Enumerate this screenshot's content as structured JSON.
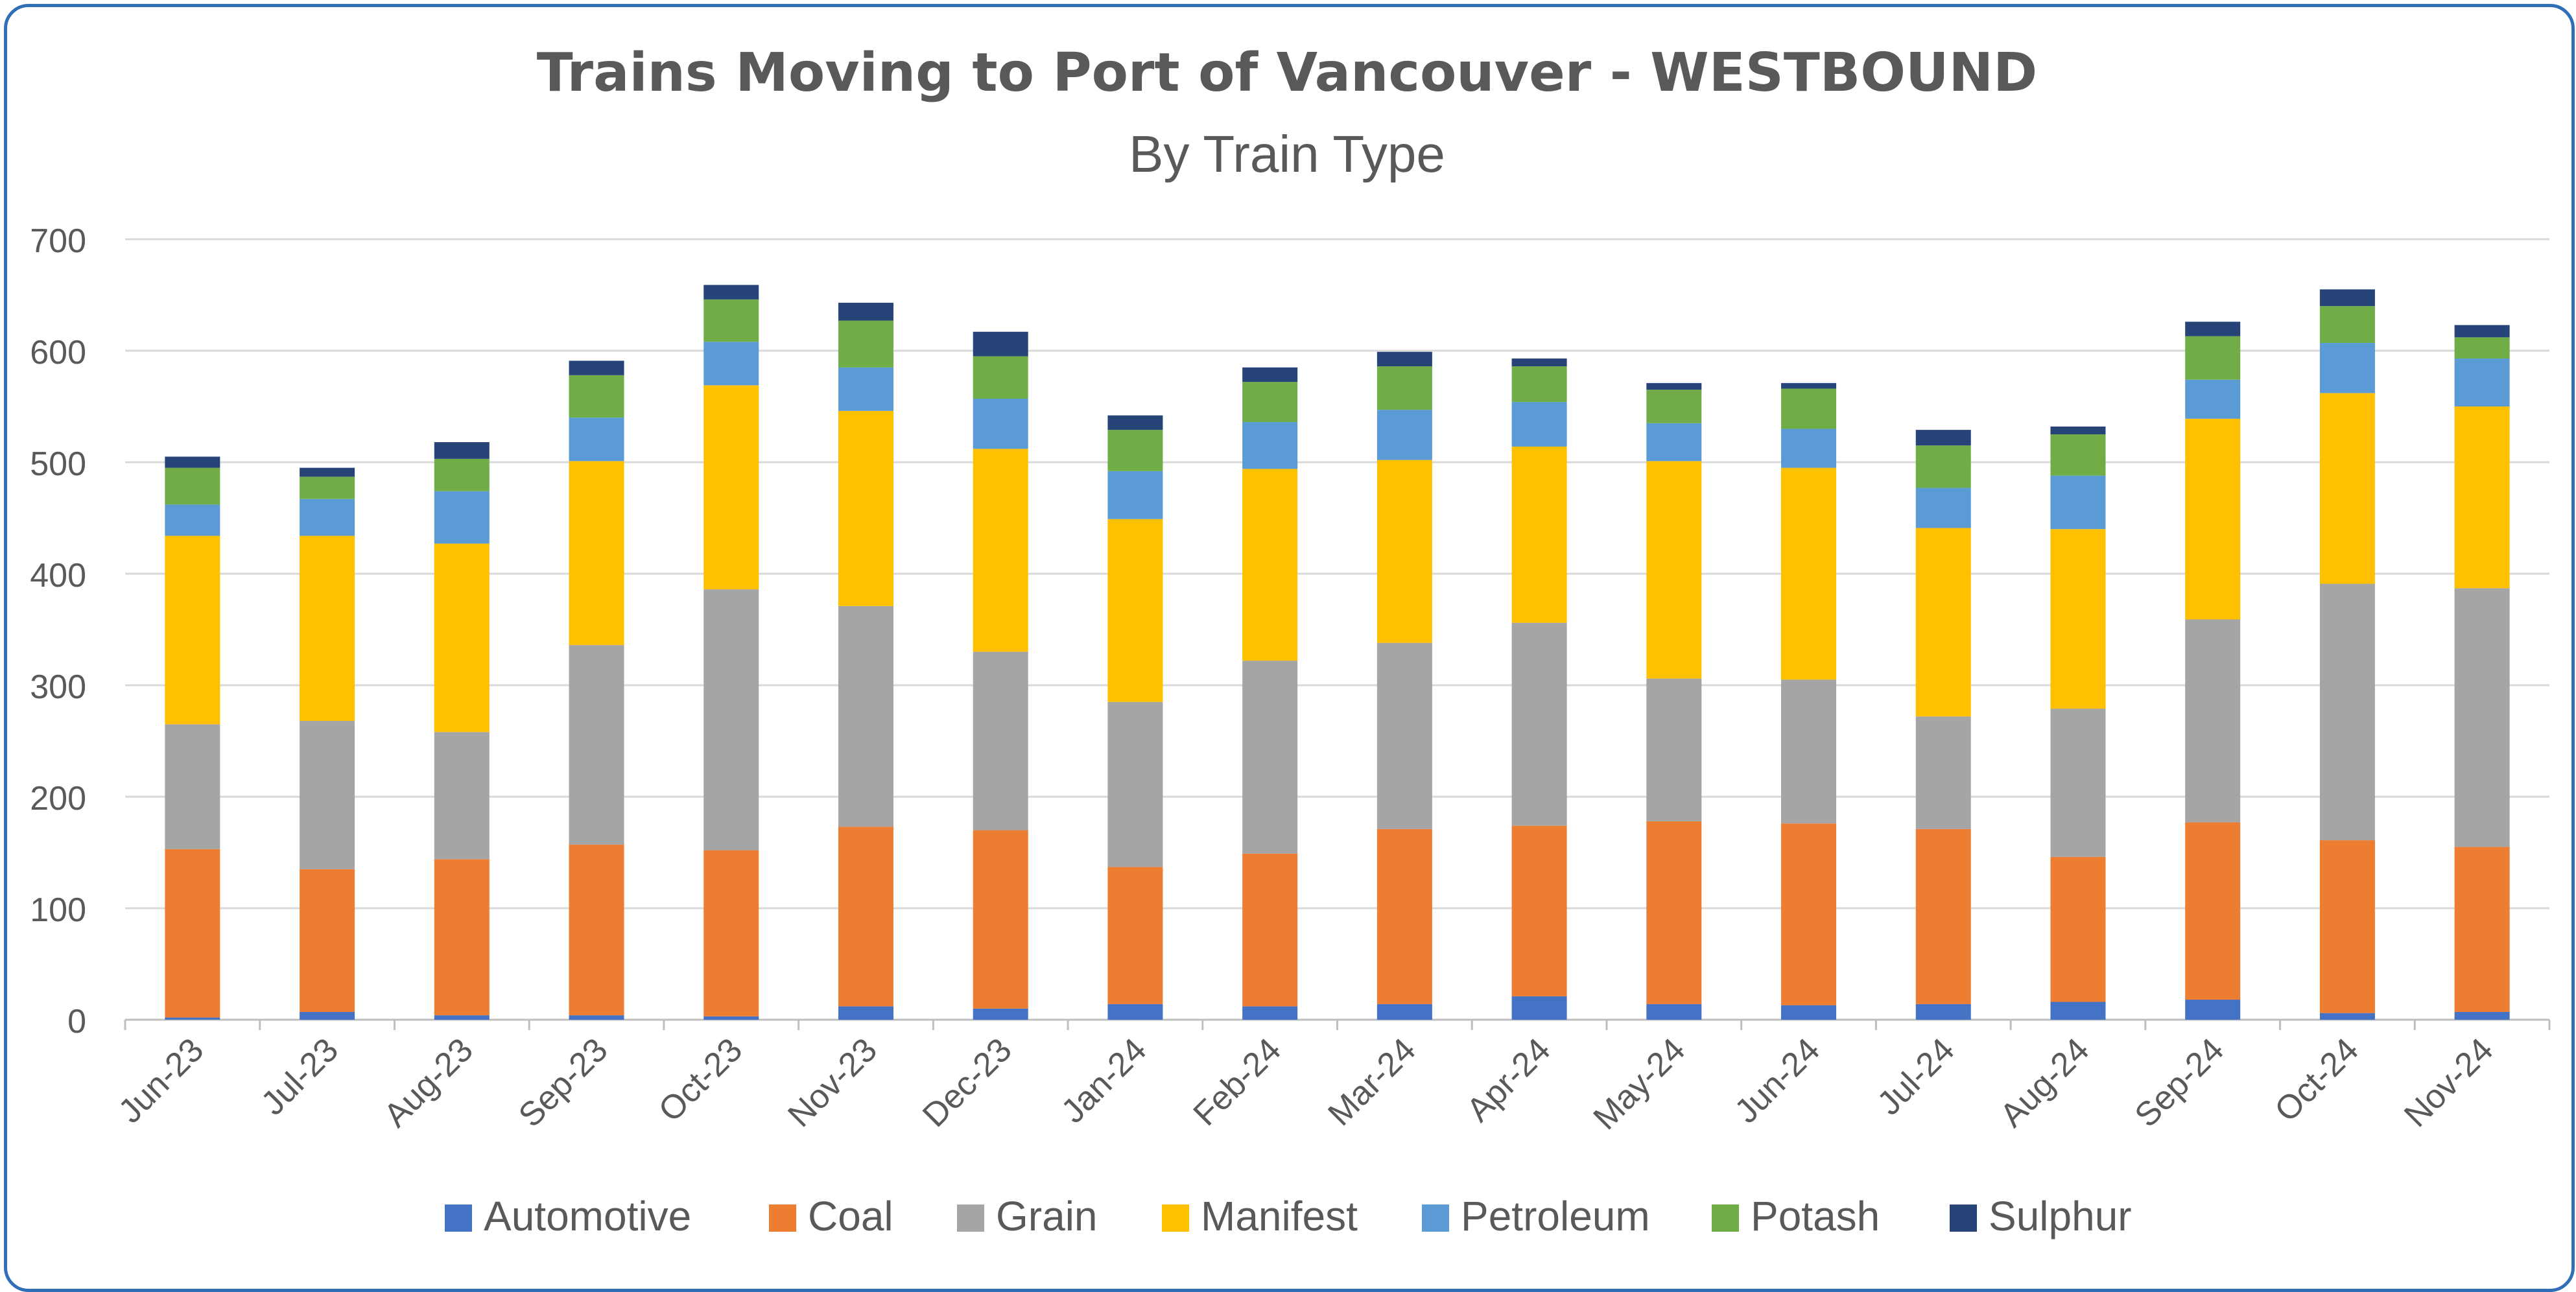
{
  "chart_data": {
    "type": "bar",
    "stacked": true,
    "title": "Trains Moving to Port of Vancouver - WESTBOUND",
    "subtitle": "By Train Type",
    "xlabel": "",
    "ylabel": "",
    "ylim": [
      0,
      700
    ],
    "yticks": [
      0,
      100,
      200,
      300,
      400,
      500,
      600,
      700
    ],
    "grid": true,
    "legend_position": "bottom",
    "categories": [
      "Jun-23",
      "Jul-23",
      "Aug-23",
      "Sep-23",
      "Oct-23",
      "Nov-23",
      "Dec-23",
      "Jan-24",
      "Feb-24",
      "Mar-24",
      "Apr-24",
      "May-24",
      "Jun-24",
      "Jul-24",
      "Aug-24",
      "Sep-24",
      "Oct-24",
      "Nov-24"
    ],
    "series": [
      {
        "name": "Automotive",
        "color": "#4472c4",
        "values": [
          2,
          7,
          4,
          4,
          3,
          12,
          10,
          14,
          12,
          14,
          21,
          14,
          13,
          14,
          16,
          18,
          6,
          7
        ]
      },
      {
        "name": "Coal",
        "color": "#ed7d31",
        "values": [
          151,
          128,
          140,
          153,
          149,
          161,
          160,
          123,
          137,
          157,
          153,
          164,
          163,
          157,
          130,
          159,
          155,
          148
        ]
      },
      {
        "name": "Grain",
        "color": "#a5a5a5",
        "values": [
          112,
          133,
          114,
          179,
          234,
          198,
          160,
          148,
          173,
          167,
          182,
          128,
          129,
          101,
          133,
          182,
          230,
          232
        ]
      },
      {
        "name": "Manifest",
        "color": "#ffc000",
        "values": [
          169,
          166,
          169,
          165,
          183,
          175,
          182,
          164,
          172,
          164,
          158,
          195,
          190,
          169,
          161,
          180,
          171,
          163
        ]
      },
      {
        "name": "Petroleum",
        "color": "#5b9bd5",
        "values": [
          28,
          33,
          47,
          39,
          39,
          39,
          45,
          43,
          42,
          45,
          40,
          34,
          35,
          36,
          48,
          35,
          45,
          43
        ]
      },
      {
        "name": "Potash",
        "color": "#70ad47",
        "values": [
          33,
          20,
          29,
          38,
          38,
          42,
          38,
          37,
          36,
          39,
          32,
          30,
          36,
          38,
          37,
          39,
          33,
          19
        ]
      },
      {
        "name": "Sulphur",
        "color": "#264478",
        "values": [
          10,
          8,
          15,
          13,
          13,
          16,
          22,
          13,
          13,
          13,
          7,
          6,
          5,
          14,
          7,
          13,
          15,
          11
        ]
      }
    ]
  }
}
